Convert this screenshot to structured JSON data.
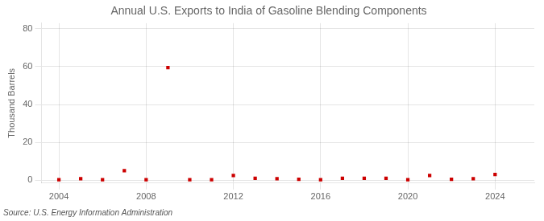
{
  "chart_data": {
    "type": "scatter",
    "title": "Annual U.S. Exports to India of Gasoline Blending Components",
    "y_label": "Thousand Barrels",
    "annotations": [
      "Source: U.S. Energy Information Administration"
    ],
    "x": [
      2004,
      2005,
      2006,
      2007,
      2008,
      2009,
      2010,
      2011,
      2012,
      2013,
      2014,
      2015,
      2016,
      2017,
      2018,
      2019,
      2020,
      2021,
      2022,
      2023,
      2024
    ],
    "values": [
      0.3,
      0.8,
      0.3,
      5.0,
      0.3,
      59.5,
      0.3,
      0.3,
      2.5,
      1.0,
      0.8,
      0.5,
      0.3,
      1.0,
      1.0,
      1.0,
      0.3,
      2.5,
      0.5,
      0.8,
      3.0
    ],
    "color": "#cc0000",
    "marker": "square",
    "xlim": [
      2003.2,
      2025.8
    ],
    "xticks": [
      2004,
      2008,
      2012,
      2016,
      2020,
      2024
    ],
    "ylim": [
      -1.5,
      83
    ],
    "yticks": [
      0,
      20,
      40,
      60,
      80
    ],
    "grid": true
  }
}
